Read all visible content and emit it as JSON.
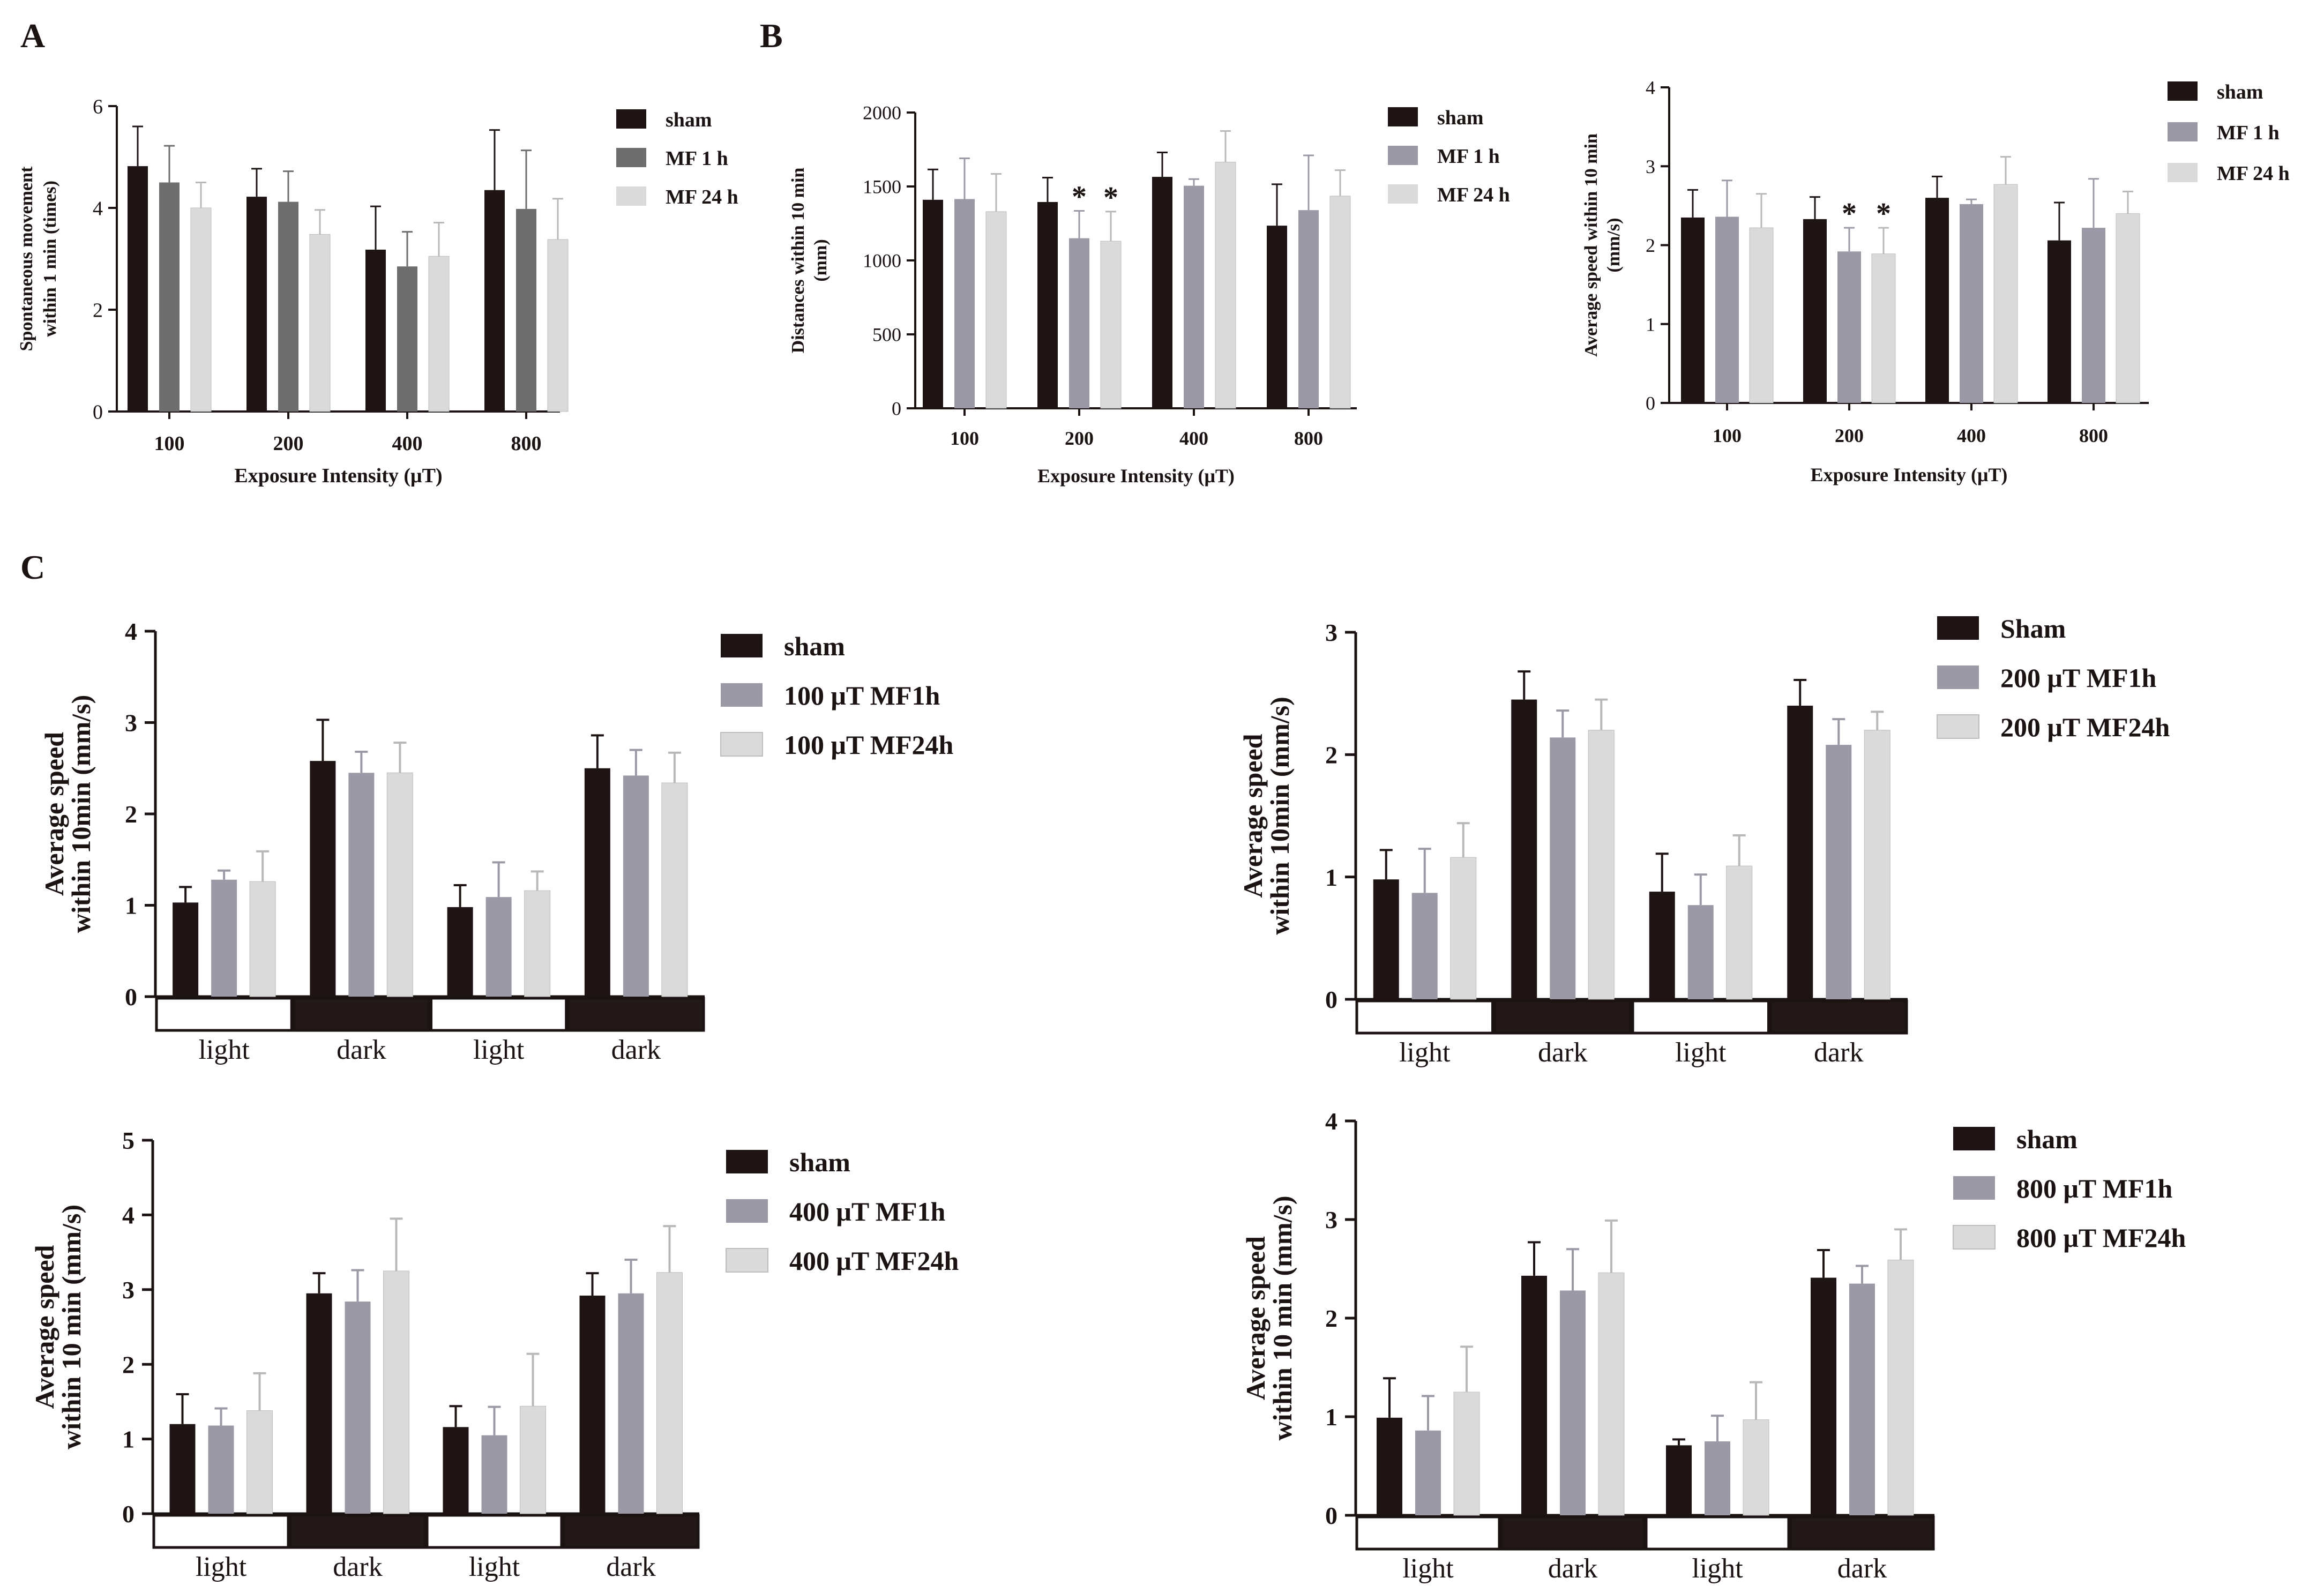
{
  "panel_labels": [
    "A",
    "B",
    "C"
  ],
  "colors": {
    "sham": "#1e1414",
    "mf1_A": "#6e6e6e",
    "mf1": "#9b99a6",
    "mf24": "#dadada",
    "axis": "#1b1212",
    "light_box": "#ffffff",
    "dark_box": "#221818"
  },
  "chart_data": [
    {
      "id": "A",
      "type": "bar",
      "title": "",
      "xlabel": "Exposure Intensity (μT)",
      "ylabel": [
        "Spontaneous movement",
        "within 1 min (times)"
      ],
      "ylim": [
        0,
        6
      ],
      "yticks": [
        "0",
        "2",
        "4",
        "6"
      ],
      "categories": [
        "100",
        "200",
        "400",
        "800"
      ],
      "series": [
        {
          "name": "sham",
          "values": [
            4.82,
            4.22,
            3.18,
            4.35
          ],
          "errors": [
            0.78,
            0.55,
            0.85,
            1.18
          ]
        },
        {
          "name": "MF 1 h",
          "values": [
            4.5,
            4.12,
            2.85,
            3.98
          ],
          "errors": [
            0.72,
            0.6,
            0.68,
            1.15
          ]
        },
        {
          "name": "MF 24 h",
          "values": [
            4.0,
            3.48,
            3.05,
            3.38
          ],
          "errors": [
            0.5,
            0.48,
            0.66,
            0.8
          ]
        }
      ],
      "legend": [
        "sham",
        "MF 1 h",
        "MF 24 h"
      ],
      "annotations": []
    },
    {
      "id": "B1",
      "type": "bar",
      "title": "",
      "xlabel": "Exposure Intensity (μT)",
      "ylabel": [
        "Distances within 10 min",
        "(mm)"
      ],
      "ylim": [
        0,
        2000
      ],
      "yticks": [
        "0",
        "500",
        "1000",
        "1500",
        "2000"
      ],
      "categories": [
        "100",
        "200",
        "400",
        "800"
      ],
      "series": [
        {
          "name": "sham",
          "values": [
            1410,
            1395,
            1565,
            1235
          ],
          "errors": [
            205,
            165,
            165,
            280
          ]
        },
        {
          "name": "MF 1 h",
          "values": [
            1415,
            1150,
            1505,
            1340
          ],
          "errors": [
            275,
            185,
            45,
            370
          ]
        },
        {
          "name": "MF 24 h",
          "values": [
            1330,
            1130,
            1665,
            1435
          ],
          "errors": [
            255,
            200,
            210,
            175
          ]
        }
      ],
      "legend": [
        "sham",
        "MF 1 h",
        "MF 24 h"
      ],
      "annotations": [
        {
          "text": "*",
          "category": "200",
          "series": "MF 1 h"
        },
        {
          "text": "*",
          "category": "200",
          "series": "MF 24 h"
        }
      ]
    },
    {
      "id": "B2",
      "type": "bar",
      "title": "",
      "xlabel": "Exposure Intensity (μT)",
      "ylabel": [
        "Average speed within 10 min",
        "(mm/s)"
      ],
      "ylim": [
        0,
        4
      ],
      "yticks": [
        "0",
        "1",
        "2",
        "3",
        "4"
      ],
      "categories": [
        "100",
        "200",
        "400",
        "800"
      ],
      "series": [
        {
          "name": "sham",
          "values": [
            2.35,
            2.33,
            2.6,
            2.06
          ],
          "errors": [
            0.35,
            0.28,
            0.27,
            0.48
          ]
        },
        {
          "name": "MF 1 h",
          "values": [
            2.36,
            1.92,
            2.52,
            2.22
          ],
          "errors": [
            0.46,
            0.3,
            0.06,
            0.62
          ]
        },
        {
          "name": "MF 24 h",
          "values": [
            2.22,
            1.89,
            2.77,
            2.4
          ],
          "errors": [
            0.43,
            0.33,
            0.35,
            0.28
          ]
        }
      ],
      "legend": [
        "sham",
        "MF 1 h",
        "MF 24 h"
      ],
      "annotations": [
        {
          "text": "*",
          "category": "200",
          "series": "MF 1 h"
        },
        {
          "text": "*",
          "category": "200",
          "series": "MF 24 h"
        }
      ]
    },
    {
      "id": "C1",
      "type": "bar",
      "title": "",
      "xlabel": "",
      "ylabel": [
        "Average speed",
        "within 10min (mm/s)"
      ],
      "ylim": [
        0,
        4
      ],
      "yticks": [
        "0",
        "1",
        "2",
        "3",
        "4"
      ],
      "categories": [
        "light",
        "dark",
        "light",
        "dark"
      ],
      "series": [
        {
          "name": "sham",
          "values": [
            1.03,
            2.58,
            0.98,
            2.5
          ],
          "errors": [
            0.17,
            0.45,
            0.24,
            0.36
          ]
        },
        {
          "name": "100 μT MF1h",
          "values": [
            1.28,
            2.45,
            1.09,
            2.42
          ],
          "errors": [
            0.1,
            0.23,
            0.38,
            0.28
          ]
        },
        {
          "name": "100 μT MF24h",
          "values": [
            1.26,
            2.45,
            1.16,
            2.34
          ],
          "errors": [
            0.33,
            0.33,
            0.21,
            0.33
          ]
        }
      ],
      "legend": [
        "sham",
        "100 μT MF1h",
        "100 μT MF24h"
      ],
      "annotations": []
    },
    {
      "id": "C2",
      "type": "bar",
      "title": "",
      "xlabel": "",
      "ylabel": [
        "Average speed",
        "within 10min (mm/s)"
      ],
      "ylim": [
        0,
        3
      ],
      "yticks": [
        "0",
        "1",
        "2",
        "3"
      ],
      "categories": [
        "light",
        "dark",
        "light",
        "dark"
      ],
      "series": [
        {
          "name": "Sham",
          "values": [
            0.98,
            2.45,
            0.88,
            2.4
          ],
          "errors": [
            0.24,
            0.23,
            0.31,
            0.21
          ]
        },
        {
          "name": "200 μT MF1h",
          "values": [
            0.87,
            2.14,
            0.77,
            2.08
          ],
          "errors": [
            0.36,
            0.22,
            0.25,
            0.21
          ]
        },
        {
          "name": "200 μT MF24h",
          "values": [
            1.16,
            2.2,
            1.09,
            2.2
          ],
          "errors": [
            0.28,
            0.25,
            0.25,
            0.15
          ]
        }
      ],
      "legend": [
        "Sham",
        "200 μT MF1h",
        "200 μT MF24h"
      ],
      "annotations": []
    },
    {
      "id": "C3",
      "type": "bar",
      "title": "",
      "xlabel": "",
      "ylabel": [
        "Average speed",
        "within 10 min (mm/s)"
      ],
      "ylim": [
        0,
        5
      ],
      "yticks": [
        "0",
        "1",
        "2",
        "3",
        "4",
        "5"
      ],
      "categories": [
        "light",
        "dark",
        "light",
        "dark"
      ],
      "series": [
        {
          "name": "sham",
          "values": [
            1.2,
            2.95,
            1.16,
            2.92
          ],
          "errors": [
            0.4,
            0.27,
            0.28,
            0.3
          ]
        },
        {
          "name": "400 μT MF1h",
          "values": [
            1.18,
            2.84,
            1.05,
            2.95
          ],
          "errors": [
            0.23,
            0.42,
            0.38,
            0.45
          ]
        },
        {
          "name": "400 μT MF24h",
          "values": [
            1.38,
            3.25,
            1.44,
            3.23
          ],
          "errors": [
            0.5,
            0.7,
            0.7,
            0.62
          ]
        }
      ],
      "legend": [
        "sham",
        "400 μT MF1h",
        "400 μT MF24h"
      ],
      "annotations": []
    },
    {
      "id": "C4",
      "type": "bar",
      "title": "",
      "xlabel": "",
      "ylabel": [
        "Average speed",
        "within 10 min (mm/s)"
      ],
      "ylim": [
        0,
        4
      ],
      "yticks": [
        "0",
        "1",
        "2",
        "3",
        "4"
      ],
      "categories": [
        "light",
        "dark",
        "light",
        "dark"
      ],
      "series": [
        {
          "name": "sham",
          "values": [
            0.99,
            2.43,
            0.71,
            2.41
          ],
          "errors": [
            0.4,
            0.34,
            0.06,
            0.28
          ]
        },
        {
          "name": "800 μT MF1h",
          "values": [
            0.86,
            2.28,
            0.75,
            2.35
          ],
          "errors": [
            0.35,
            0.42,
            0.26,
            0.18
          ]
        },
        {
          "name": "800 μT MF24h",
          "values": [
            1.25,
            2.46,
            0.97,
            2.59
          ],
          "errors": [
            0.46,
            0.53,
            0.38,
            0.31
          ]
        }
      ],
      "legend": [
        "sham",
        "800 μT MF1h",
        "800 μT MF24h"
      ],
      "annotations": []
    }
  ]
}
